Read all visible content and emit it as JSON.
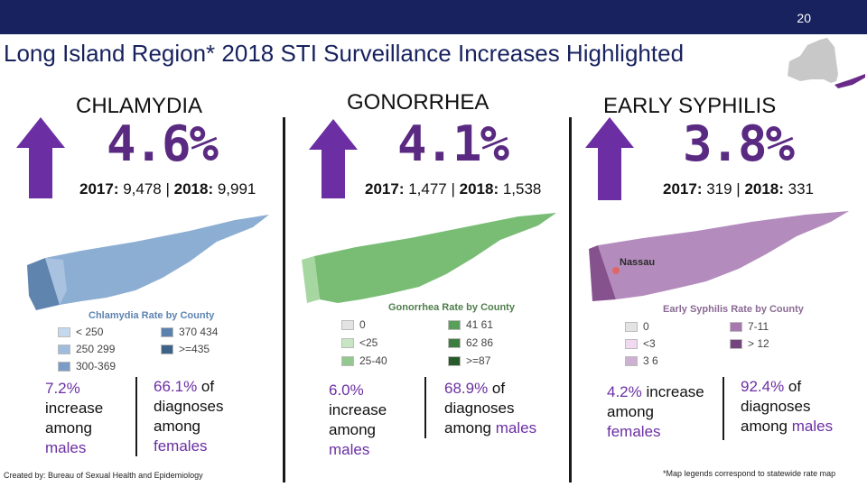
{
  "header": {
    "page_number": "20"
  },
  "title": "Long Island Region* 2018 STI Surveillance Increases Highlighted",
  "sections": [
    {
      "name": "CHLAMYDIA",
      "percent": "4.6%",
      "prior_label": "2017:",
      "prior_value": " 9,478 | ",
      "current_label": "2018:",
      "current_value": " 9,991",
      "legend_title": "Chlamydia Rate by County",
      "legend": [
        {
          "label": "< 250",
          "color": "#c5d9ee"
        },
        {
          "label": "370 434",
          "color": "#5b82ad"
        },
        {
          "label": "250 299",
          "color": "#9fbcdc"
        },
        {
          "label": ">=435",
          "color": "#3f6288"
        },
        {
          "label": "300-369",
          "color": "#7a9cc6"
        }
      ],
      "stat_left": {
        "pct": "7.2%",
        "text": "increase among",
        "group": "males"
      },
      "stat_right": {
        "pct": "66.1%",
        "of": " of",
        "text": "diagnoses among",
        "group": "females"
      }
    },
    {
      "name": "GONORRHEA",
      "percent": "4.1%",
      "prior_label": "2017:",
      "prior_value": " 1,477 | ",
      "current_label": "2018:",
      "current_value": " 1,538",
      "legend_title": "Gonorrhea Rate by County",
      "legend": [
        {
          "label": "0",
          "color": "#e3e3e3"
        },
        {
          "label": "41 61",
          "color": "#58a05a"
        },
        {
          "label": "<25",
          "color": "#c8e6c4"
        },
        {
          "label": "62 86",
          "color": "#3d7e40"
        },
        {
          "label": "25-40",
          "color": "#93c98e"
        },
        {
          "label": ">=87",
          "color": "#275c2a"
        }
      ],
      "stat_left": {
        "pct": "6.0%",
        "text": "increase among",
        "group": "males"
      },
      "stat_right": {
        "pct": "68.9%",
        "of": " of",
        "text": "diagnoses among",
        "group": "males"
      }
    },
    {
      "name": "EARLY SYPHILIS",
      "percent": "3.8%",
      "prior_label": "2017:",
      "prior_value": " 319 | ",
      "current_label": "2018:",
      "current_value": " 331",
      "map_label": "Nassau",
      "legend_title": "Early Syphilis Rate by County",
      "legend": [
        {
          "label": "0",
          "color": "#e3e3e3"
        },
        {
          "label": "7-11",
          "color": "#a777b0"
        },
        {
          "label": "<3",
          "color": "#f1d9f1"
        },
        {
          "label": "> 12",
          "color": "#74447e"
        },
        {
          "label": "3 6",
          "color": "#ceb1d2"
        }
      ],
      "stat_left": {
        "pct": "4.2%",
        "text1": " increase",
        "text": "among",
        "group": "females"
      },
      "stat_right": {
        "pct": "92.4%",
        "of": " of",
        "text": "diagnoses among",
        "group": "males"
      }
    }
  ],
  "footer": {
    "created_by": "Created by: Bureau of Sexual Health and Epidemiology",
    "note": "*Map legends correspond to statewide rate map"
  },
  "colors": {
    "navy": "#17225e",
    "arrow": "#6b2fa3",
    "chlamydia_map": "#8daed3",
    "gonorrhea_map": "#79bd75",
    "syphilis_map": "#b38cbd"
  }
}
